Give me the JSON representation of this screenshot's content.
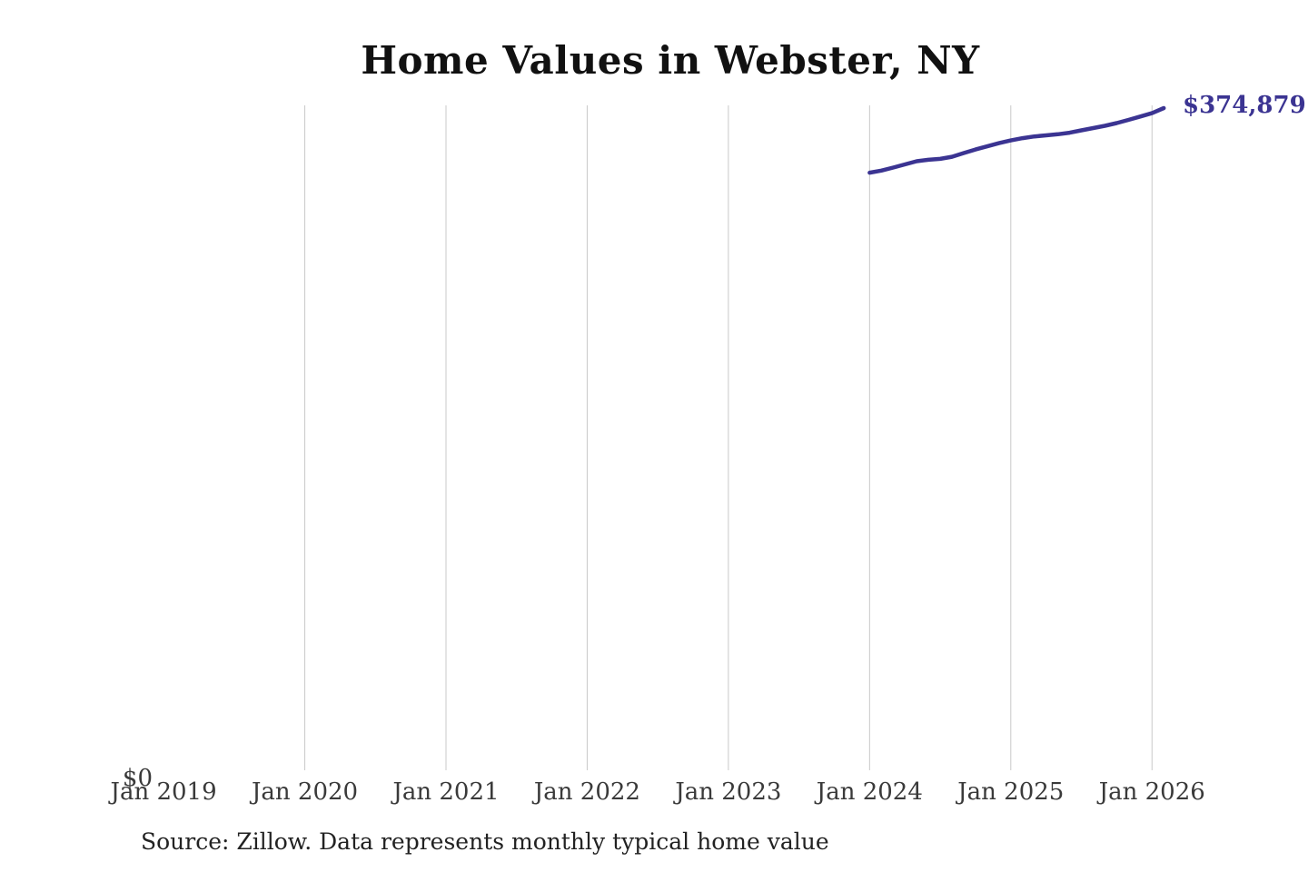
{
  "title": "Home Values in Webster, NY",
  "source_note": "Source: Zillow. Data represents monthly typical home value",
  "end_value_label": "$374,879",
  "y_zero_label": "$0",
  "colors": {
    "line": "#3b3492",
    "end_label": "#3b3492",
    "gridline": "#c9c9c9",
    "title_text": "#111111",
    "axis_text": "#3a3a3a",
    "source_text": "#222222",
    "background": "#ffffff"
  },
  "chart_data": {
    "type": "line",
    "title": "Home Values in Webster, NY",
    "xlabel": "",
    "ylabel": "",
    "legend": "none",
    "grid": "vertical-only",
    "x_tick_labels": [
      "Jan 2019",
      "Jan 2020",
      "Jan 2021",
      "Jan 2022",
      "Jan 2023",
      "Jan 2024",
      "Jan 2025",
      "Jan 2026"
    ],
    "x_tick_years": [
      2019,
      2020,
      2021,
      2022,
      2023,
      2024,
      2025,
      2026
    ],
    "gridline_years": [
      2020,
      2021,
      2022,
      2023,
      2024,
      2025,
      2026
    ],
    "y_tick_labels": [
      "$0"
    ],
    "ylim": [
      0,
      376500
    ],
    "xlim_years": [
      2019.0,
      2027.1
    ],
    "series": [
      {
        "name": "Typical home value",
        "final_value": 374879,
        "final_value_label": "$374,879",
        "x": [
          "2024-01",
          "2024-02",
          "2024-03",
          "2024-04",
          "2024-05",
          "2024-06",
          "2024-07",
          "2024-08",
          "2024-09",
          "2024-10",
          "2024-11",
          "2024-12",
          "2025-01",
          "2025-02",
          "2025-03",
          "2025-04",
          "2025-05",
          "2025-06",
          "2025-07",
          "2025-08",
          "2025-09",
          "2025-10",
          "2025-11",
          "2025-12",
          "2026-01",
          "2026-02"
        ],
        "values": [
          338400,
          339600,
          341300,
          343100,
          344900,
          345700,
          346200,
          347400,
          349500,
          351500,
          353300,
          355100,
          356600,
          357900,
          358900,
          359500,
          360100,
          361000,
          362300,
          363600,
          364900,
          366400,
          368200,
          370100,
          372000,
          374879
        ]
      }
    ]
  }
}
